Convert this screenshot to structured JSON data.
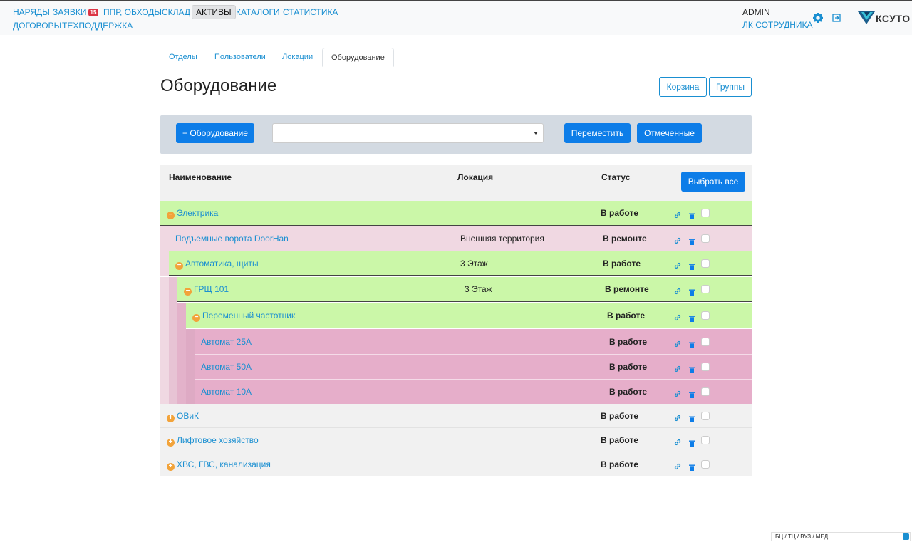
{
  "nav": {
    "items": [
      "НАРЯДЫ",
      "ЗАЯВКИ",
      "ППР, ОБХОДЫ",
      "СКЛАД",
      "АКТИВЫ",
      "КАТАЛОГИ",
      "СТАТИСТИКА",
      "ДОГОВОРЫ",
      "ТЕХПОДДЕРЖКА"
    ],
    "requests_badge": "15",
    "active": "АКТИВЫ"
  },
  "user": {
    "name": "ADMIN",
    "cabinet_link": "ЛК СОТРУДНИКА"
  },
  "icons": {
    "settings": "gear-icon",
    "logout": "logout-icon"
  },
  "logo": {
    "text": "КСУТО"
  },
  "tabs": [
    "Отделы",
    "Пользователи",
    "Локации",
    "Оборудование"
  ],
  "active_tab": "Оборудование",
  "page": {
    "title": "Оборудование",
    "trash_button": "Корзина",
    "groups_button": "Группы"
  },
  "toolbar": {
    "add_button": "+ Оборудование",
    "select_value": "",
    "move_button": "Переместить",
    "marked_button": "Отмеченные"
  },
  "table": {
    "headers": {
      "name": "Наименование",
      "location": "Локация",
      "status": "Статус",
      "select_all": "Выбрать все"
    },
    "rows": [
      {
        "name": "Электрика",
        "location": "",
        "status": "В работе",
        "toggle": "−"
      },
      {
        "name": "Подъемные ворота DoorHan",
        "location": "Внешняя территория",
        "status": "В ремонте",
        "toggle": ""
      },
      {
        "name": "Автоматика, щиты",
        "location": "3 Этаж",
        "status": "В работе",
        "toggle": "−"
      },
      {
        "name": "ГРЩ 101",
        "location": "3 Этаж",
        "status": "В ремонте",
        "toggle": "−"
      },
      {
        "name": "Переменный частотник",
        "location": "",
        "status": "В работе",
        "toggle": "−"
      },
      {
        "name": "Автомат 25А",
        "location": "",
        "status": "В работе",
        "toggle": ""
      },
      {
        "name": "Автомат 50А",
        "location": "",
        "status": "В работе",
        "toggle": ""
      },
      {
        "name": "Автомат 10А",
        "location": "",
        "status": "В работе",
        "toggle": ""
      },
      {
        "name": "ОВиК",
        "location": "",
        "status": "В работе",
        "toggle": "+"
      },
      {
        "name": "Лифтовое хозяйство",
        "location": "",
        "status": "В работе",
        "toggle": "+"
      },
      {
        "name": "ХВС, ГВС, канализация",
        "location": "",
        "status": "В работе",
        "toggle": "+"
      }
    ]
  },
  "footer": {
    "object_type": "БЦ / ТЦ / ВУЗ / МЕД"
  },
  "colors": {
    "accent": "#1a8fd1",
    "primary": "#0d7de8",
    "working_group": "#cbf7a8",
    "child_row": "#e6aeca",
    "repair_row": "#f0d8e2"
  }
}
